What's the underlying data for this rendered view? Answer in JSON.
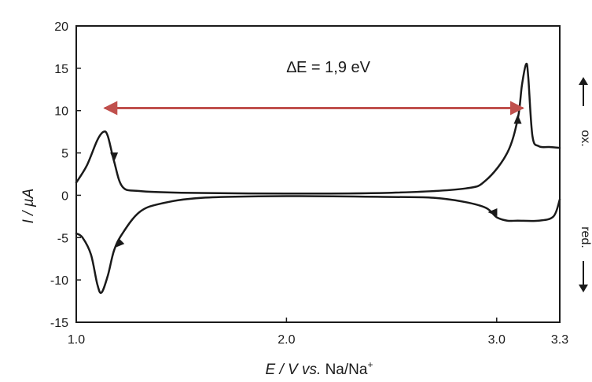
{
  "chart_data": {
    "type": "line",
    "title": "",
    "xlabel_italic": "E / V",
    "xlabel_vs": "vs.",
    "xlabel_ref": "Na/Na",
    "xlabel_sup": "+",
    "ylabel": "I / µA",
    "xlim": [
      1.0,
      3.3
    ],
    "ylim": [
      -15,
      20
    ],
    "x_ticks": [
      "1.0",
      "2.0",
      "3.0",
      "3.3"
    ],
    "x_tick_values": [
      1.0,
      2.0,
      3.0,
      3.3
    ],
    "y_ticks": [
      "20",
      "15",
      "10",
      "5",
      "0",
      "-5",
      "-10",
      "-15"
    ],
    "y_tick_values": [
      20,
      15,
      10,
      5,
      0,
      -5,
      -10,
      -15
    ],
    "grid": false,
    "series": [
      {
        "kind": "forward sweep",
        "x": [
          1.0,
          1.05,
          1.1,
          1.13,
          1.15,
          1.18,
          1.22,
          1.3,
          1.5,
          2.0,
          2.5,
          2.85,
          2.95,
          3.05,
          3.1,
          3.12,
          3.14,
          3.15,
          3.17,
          3.2,
          3.25,
          3.3
        ],
        "y": [
          1.5,
          3.5,
          6.5,
          7.5,
          7.0,
          4.0,
          1.0,
          0.5,
          0.3,
          0.2,
          0.3,
          0.8,
          1.8,
          5.0,
          9.0,
          13.0,
          15.5,
          14.0,
          7.0,
          5.8,
          5.7,
          5.6
        ]
      },
      {
        "kind": "reverse sweep",
        "x": [
          3.3,
          3.27,
          3.2,
          3.1,
          3.05,
          3.0,
          2.95,
          2.85,
          2.7,
          2.5,
          2.0,
          1.6,
          1.4,
          1.3,
          1.22,
          1.18,
          1.15,
          1.12,
          1.1,
          1.07,
          1.03,
          1.0
        ],
        "y": [
          -0.5,
          -2.5,
          -3.0,
          -3.0,
          -3.0,
          -2.6,
          -1.5,
          -0.8,
          -0.3,
          -0.2,
          -0.1,
          -0.3,
          -1.0,
          -2.0,
          -4.5,
          -6.5,
          -9.5,
          -11.5,
          -10.5,
          -7.0,
          -5.0,
          -4.5
        ]
      }
    ],
    "arrows": [
      {
        "x": 1.18,
        "y": 4.5,
        "direction": "down"
      },
      {
        "x": 1.2,
        "y": -5.8,
        "direction": "left-down"
      },
      {
        "x": 3.1,
        "y": 9.0,
        "direction": "up"
      },
      {
        "x": 2.98,
        "y": -2.0,
        "direction": "left"
      }
    ],
    "annotation": {
      "text": "∆E = 1,9 eV",
      "x_start": 1.15,
      "x_end": 3.11,
      "y": 10.3,
      "text_x": 2.2,
      "text_y": 14.5,
      "color": "#c0504d"
    },
    "side_labels": {
      "oxidation": "ox.",
      "reduction": "red."
    }
  }
}
